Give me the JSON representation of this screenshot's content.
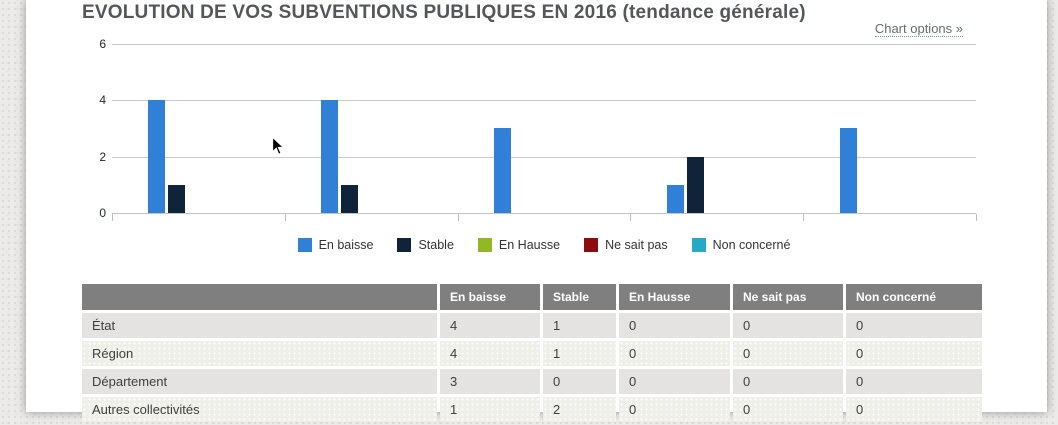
{
  "page": {
    "title": "EVOLUTION DE VOS SUBVENTIONS PUBLIQUES EN 2016 (tendance générale)",
    "chart_options_label": "Chart options »"
  },
  "chart_data": {
    "type": "bar",
    "title": "EVOLUTION DE VOS SUBVENTIONS PUBLIQUES EN 2016 (tendance générale)",
    "categories": [
      "État",
      "Région",
      "Département",
      "Autres collectivités",
      ""
    ],
    "series": [
      {
        "name": "En baisse",
        "color": "#3080d8",
        "values": [
          4,
          4,
          3,
          1,
          3
        ]
      },
      {
        "name": "Stable",
        "color": "#0f2339",
        "values": [
          1,
          1,
          0,
          2,
          0
        ]
      },
      {
        "name": "En Hausse",
        "color": "#93b825",
        "values": [
          0,
          0,
          0,
          0,
          0
        ]
      },
      {
        "name": "Ne sait pas",
        "color": "#8e0c10",
        "values": [
          0,
          0,
          0,
          0,
          0
        ]
      },
      {
        "name": "Non concerné",
        "color": "#26a9c7",
        "values": [
          0,
          0,
          0,
          0,
          0
        ]
      }
    ],
    "xlabel": "",
    "ylabel": "",
    "ylim": [
      0,
      6
    ],
    "yticks": [
      0,
      2,
      4,
      6
    ],
    "grid": true,
    "legend_position": "bottom"
  },
  "table": {
    "columns": [
      "",
      "En baisse",
      "Stable",
      "En Hausse",
      "Ne sait pas",
      "Non concerné"
    ],
    "rows": [
      {
        "label": "État",
        "values": [
          4,
          1,
          0,
          0,
          0
        ]
      },
      {
        "label": "Région",
        "values": [
          4,
          1,
          0,
          0,
          0
        ]
      },
      {
        "label": "Département",
        "values": [
          3,
          0,
          0,
          0,
          0
        ]
      },
      {
        "label": "Autres collectivités",
        "values": [
          1,
          2,
          0,
          0,
          0
        ]
      }
    ]
  },
  "colors": {
    "header_bg": "#7f7f7f",
    "row_odd": "#e4e3e1",
    "row_even": "#eeefe9",
    "gridline": "#cccccc",
    "tick": "#aac1d8"
  }
}
